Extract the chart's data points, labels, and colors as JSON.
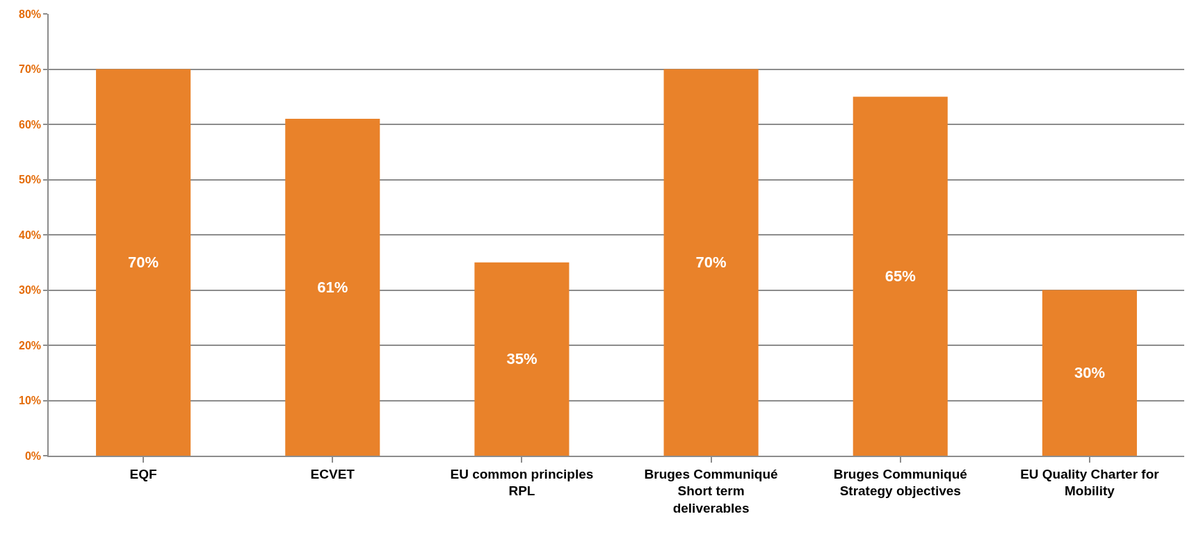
{
  "chart_data": {
    "type": "bar",
    "categories": [
      "EQF",
      "ECVET",
      "EU common principles RPL",
      "Bruges Communiqué Short term deliverables",
      "Bruges Communiqué Strategy objectives",
      "EU Quality Charter for Mobility"
    ],
    "values": [
      70,
      61,
      35,
      70,
      65,
      30
    ],
    "value_labels": [
      "70%",
      "61%",
      "35%",
      "70%",
      "65%",
      "30%"
    ],
    "color": "#e9822a",
    "ylim": [
      0,
      80
    ],
    "yticks": [
      {
        "value": 0,
        "label": "0%"
      },
      {
        "value": 10,
        "label": "10%"
      },
      {
        "value": 20,
        "label": "20%"
      },
      {
        "value": 30,
        "label": "30%"
      },
      {
        "value": 40,
        "label": "40%"
      },
      {
        "value": 50,
        "label": "50%"
      },
      {
        "value": 60,
        "label": "60%"
      },
      {
        "value": 70,
        "label": "70%"
      },
      {
        "value": 80,
        "label": "80%"
      }
    ],
    "grid": "y"
  }
}
